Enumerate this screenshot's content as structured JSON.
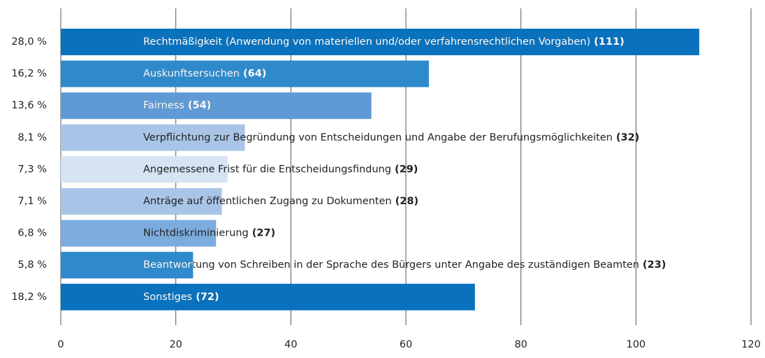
{
  "chart_data": {
    "type": "hbar",
    "categories": [
      "Rechtmäßigkeit (Anwendung von materiellen und/oder verfahrensrechtlichen Vorgaben)",
      "Auskunftsersuchen",
      "Fairness",
      "Verpflichtung zur Begründung von Entscheidungen und Angabe der Berufungsmöglichkeiten",
      "Angemessene Frist für die Entscheidungsfindung",
      "Anträge auf öffentlichen Zugang zu Dokumenten",
      "Nichtdiskriminierung",
      "Beantwortung von Schreiben in der Sprache des Bürgers unter Angabe des zuständigen Beamten",
      "Sonstiges"
    ],
    "values": [
      111,
      64,
      54,
      32,
      29,
      28,
      27,
      23,
      72
    ],
    "value_labels": [
      "(111)",
      "(64)",
      "(54)",
      "(32)",
      "(29)",
      "(28)",
      "(27)",
      "(23)",
      "(72)"
    ],
    "shares": [
      "28,0 %",
      "16,2 %",
      "13,6 %",
      "8,1 %",
      "7,3 %",
      "7,1 %",
      "6,8 %",
      "5,8 %",
      "18,2 %"
    ],
    "colors": [
      "#0a72bd",
      "#2f8acb",
      "#5f9ad4",
      "#a8c5e8",
      "#d5e3f3",
      "#a8c5e8",
      "#7cacde",
      "#2f8acb",
      "#0a72bd"
    ],
    "xlim": [
      0,
      120
    ],
    "xticks": [
      0,
      20,
      40,
      60,
      80,
      100,
      120
    ],
    "grid": true
  }
}
